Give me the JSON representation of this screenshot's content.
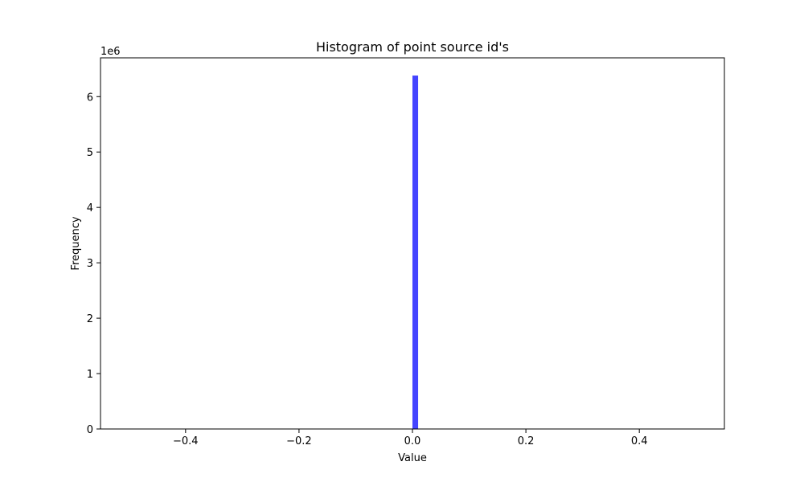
{
  "chart_data": {
    "type": "bar",
    "title": "Histogram of point source id's",
    "xlabel": "Value",
    "ylabel": "Frequency",
    "y_offset_label": "1e6",
    "xlim": [
      -0.55,
      0.55
    ],
    "ylim": [
      0,
      6.7
    ],
    "x_ticks": [
      {
        "value": -0.4,
        "label": "−0.4"
      },
      {
        "value": -0.2,
        "label": "−0.2"
      },
      {
        "value": 0.0,
        "label": "0.0"
      },
      {
        "value": 0.2,
        "label": "0.2"
      },
      {
        "value": 0.4,
        "label": "0.4"
      }
    ],
    "y_ticks": [
      {
        "value": 0,
        "label": "0"
      },
      {
        "value": 1,
        "label": "1"
      },
      {
        "value": 2,
        "label": "2"
      },
      {
        "value": 3,
        "label": "3"
      },
      {
        "value": 4,
        "label": "4"
      },
      {
        "value": 5,
        "label": "5"
      },
      {
        "value": 6,
        "label": "6"
      }
    ],
    "bars": [
      {
        "x_start": 0.0,
        "x_end": 0.01,
        "value": 6.38
      }
    ],
    "bar_color": "#4444ff",
    "grid": false,
    "legend": "none"
  }
}
